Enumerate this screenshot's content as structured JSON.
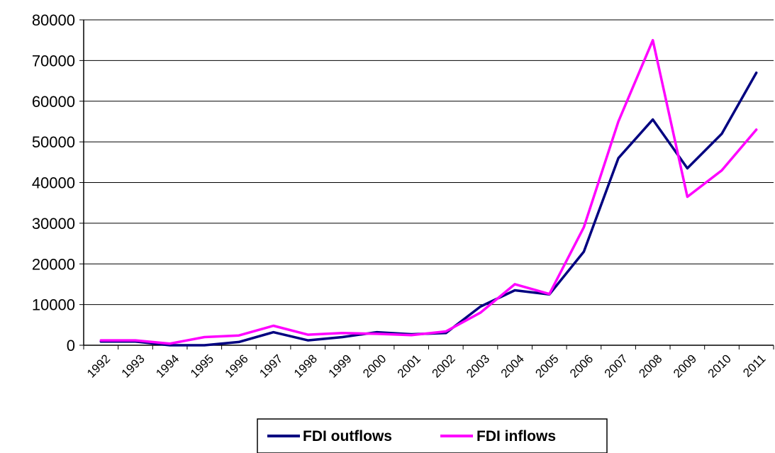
{
  "chart_data": {
    "type": "line",
    "title": "",
    "xlabel": "",
    "ylabel": "",
    "x": [
      "1992",
      "1993",
      "1994",
      "1995",
      "1996",
      "1997",
      "1998",
      "1999",
      "2000",
      "2001",
      "2002",
      "2003",
      "2004",
      "2005",
      "2006",
      "2007",
      "2008",
      "2009",
      "2010",
      "2011"
    ],
    "ylim": [
      0,
      80000
    ],
    "yticks": [
      "0",
      "10000",
      "20000",
      "30000",
      "40000",
      "50000",
      "60000",
      "70000",
      "80000"
    ],
    "grid": "horizontal",
    "legend_position": "bottom",
    "series": [
      {
        "name": "FDI outflows",
        "color": "#000080",
        "values": [
          900,
          900,
          0,
          0,
          800,
          3200,
          1200,
          2000,
          3200,
          2700,
          3000,
          9500,
          13500,
          12500,
          23000,
          46000,
          55500,
          43500,
          52000,
          67000
        ]
      },
      {
        "name": "FDI inflows",
        "color": "#ff00ff",
        "values": [
          1200,
          1200,
          400,
          2000,
          2400,
          4800,
          2600,
          3000,
          2800,
          2500,
          3400,
          8000,
          15000,
          12600,
          29000,
          55000,
          75000,
          36500,
          43000,
          53000
        ]
      }
    ]
  }
}
